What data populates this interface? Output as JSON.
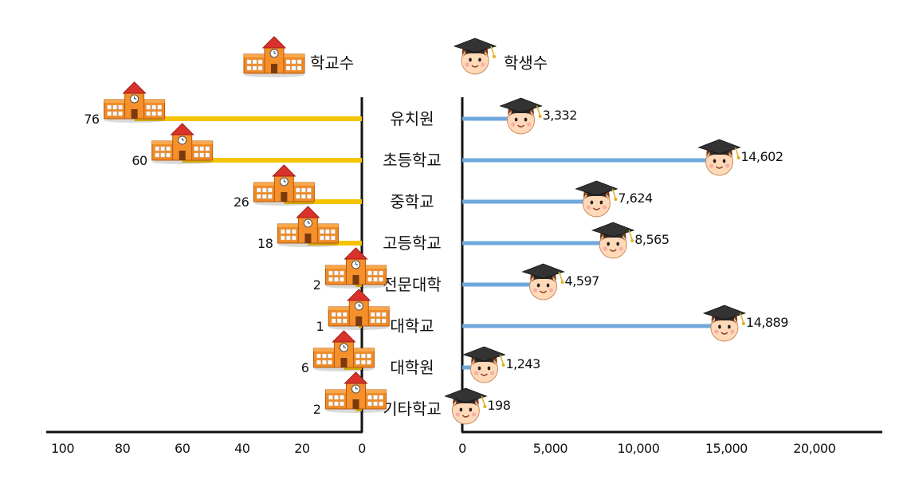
{
  "legend": {
    "schools_label": "학교수",
    "students_label": "학생수"
  },
  "colors": {
    "schools_line": "#F5C400",
    "students_line": "#6FA8DC",
    "axis": "#111111"
  },
  "icons": {
    "schools": "school-building-icon",
    "students": "graduate-face-icon"
  },
  "chart_data": [
    {
      "type": "bar",
      "orientation": "horizontal",
      "direction": "right-to-left",
      "categories": [
        "유치원",
        "초등학교",
        "중학교",
        "고등학교",
        "전문대학",
        "대학교",
        "대학원",
        "기타학교"
      ],
      "series": [
        {
          "name": "학교수",
          "values": [
            76,
            60,
            26,
            18,
            2,
            1,
            6,
            2
          ]
        }
      ],
      "value_labels": [
        "76",
        "60",
        "26",
        "18",
        "2",
        "1",
        "6",
        "2"
      ],
      "xlim": [
        0,
        100
      ],
      "xticks": [
        0,
        20,
        40,
        60,
        80,
        100
      ],
      "xtick_labels": [
        "0",
        "20",
        "40",
        "60",
        "80",
        "100"
      ]
    },
    {
      "type": "bar",
      "orientation": "horizontal",
      "direction": "left-to-right",
      "categories": [
        "유치원",
        "초등학교",
        "중학교",
        "고등학교",
        "전문대학",
        "대학교",
        "대학원",
        "기타학교"
      ],
      "series": [
        {
          "name": "학생수",
          "values": [
            3332,
            14602,
            7624,
            8565,
            4597,
            14889,
            1243,
            198
          ]
        }
      ],
      "value_labels": [
        "3,332",
        "14,602",
        "7,624",
        "8,565",
        "4,597",
        "14,889",
        "1,243",
        "198"
      ],
      "xlim": [
        0,
        24000
      ],
      "xticks": [
        0,
        5000,
        10000,
        15000,
        20000
      ],
      "xtick_labels": [
        "0",
        "5,000",
        "10,000",
        "15,000",
        "20,000"
      ]
    }
  ]
}
